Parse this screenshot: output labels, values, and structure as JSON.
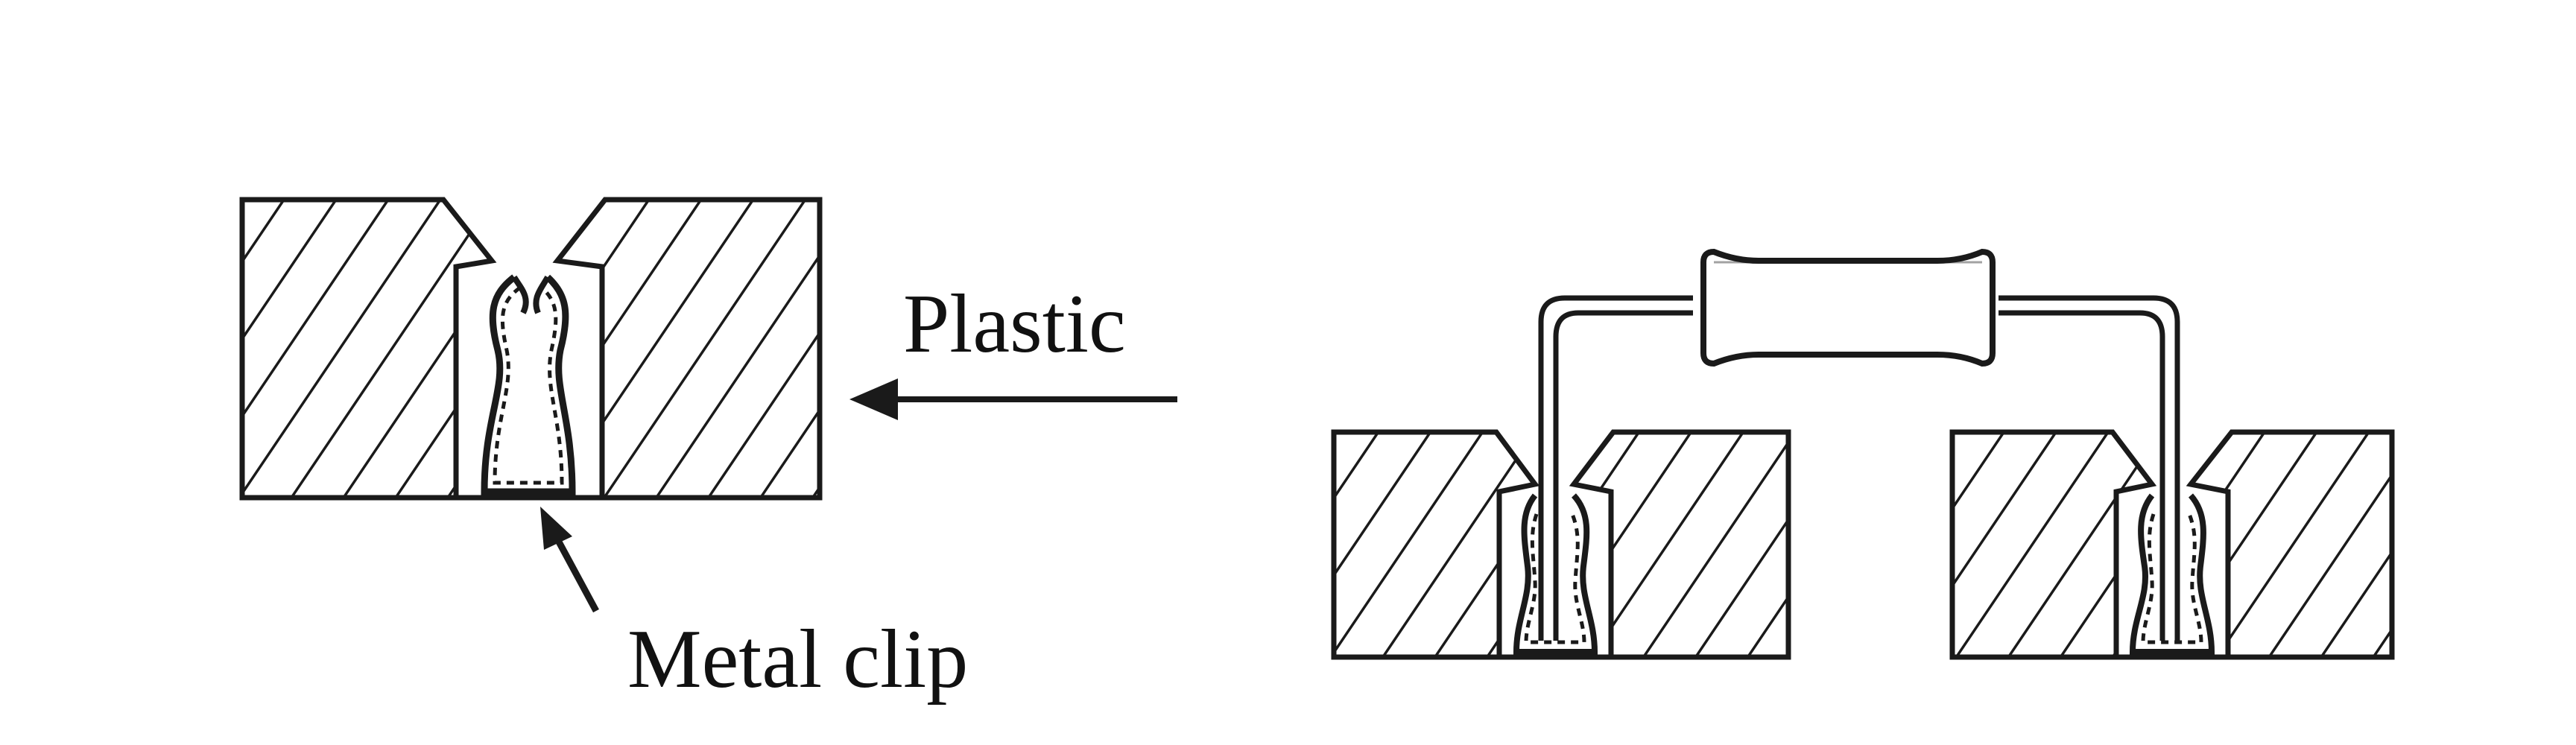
{
  "labels": {
    "plastic": "Plastic",
    "metal_clip": "Metal clip"
  },
  "colors": {
    "ink": "#1a1a1a",
    "background": "#ffffff"
  }
}
